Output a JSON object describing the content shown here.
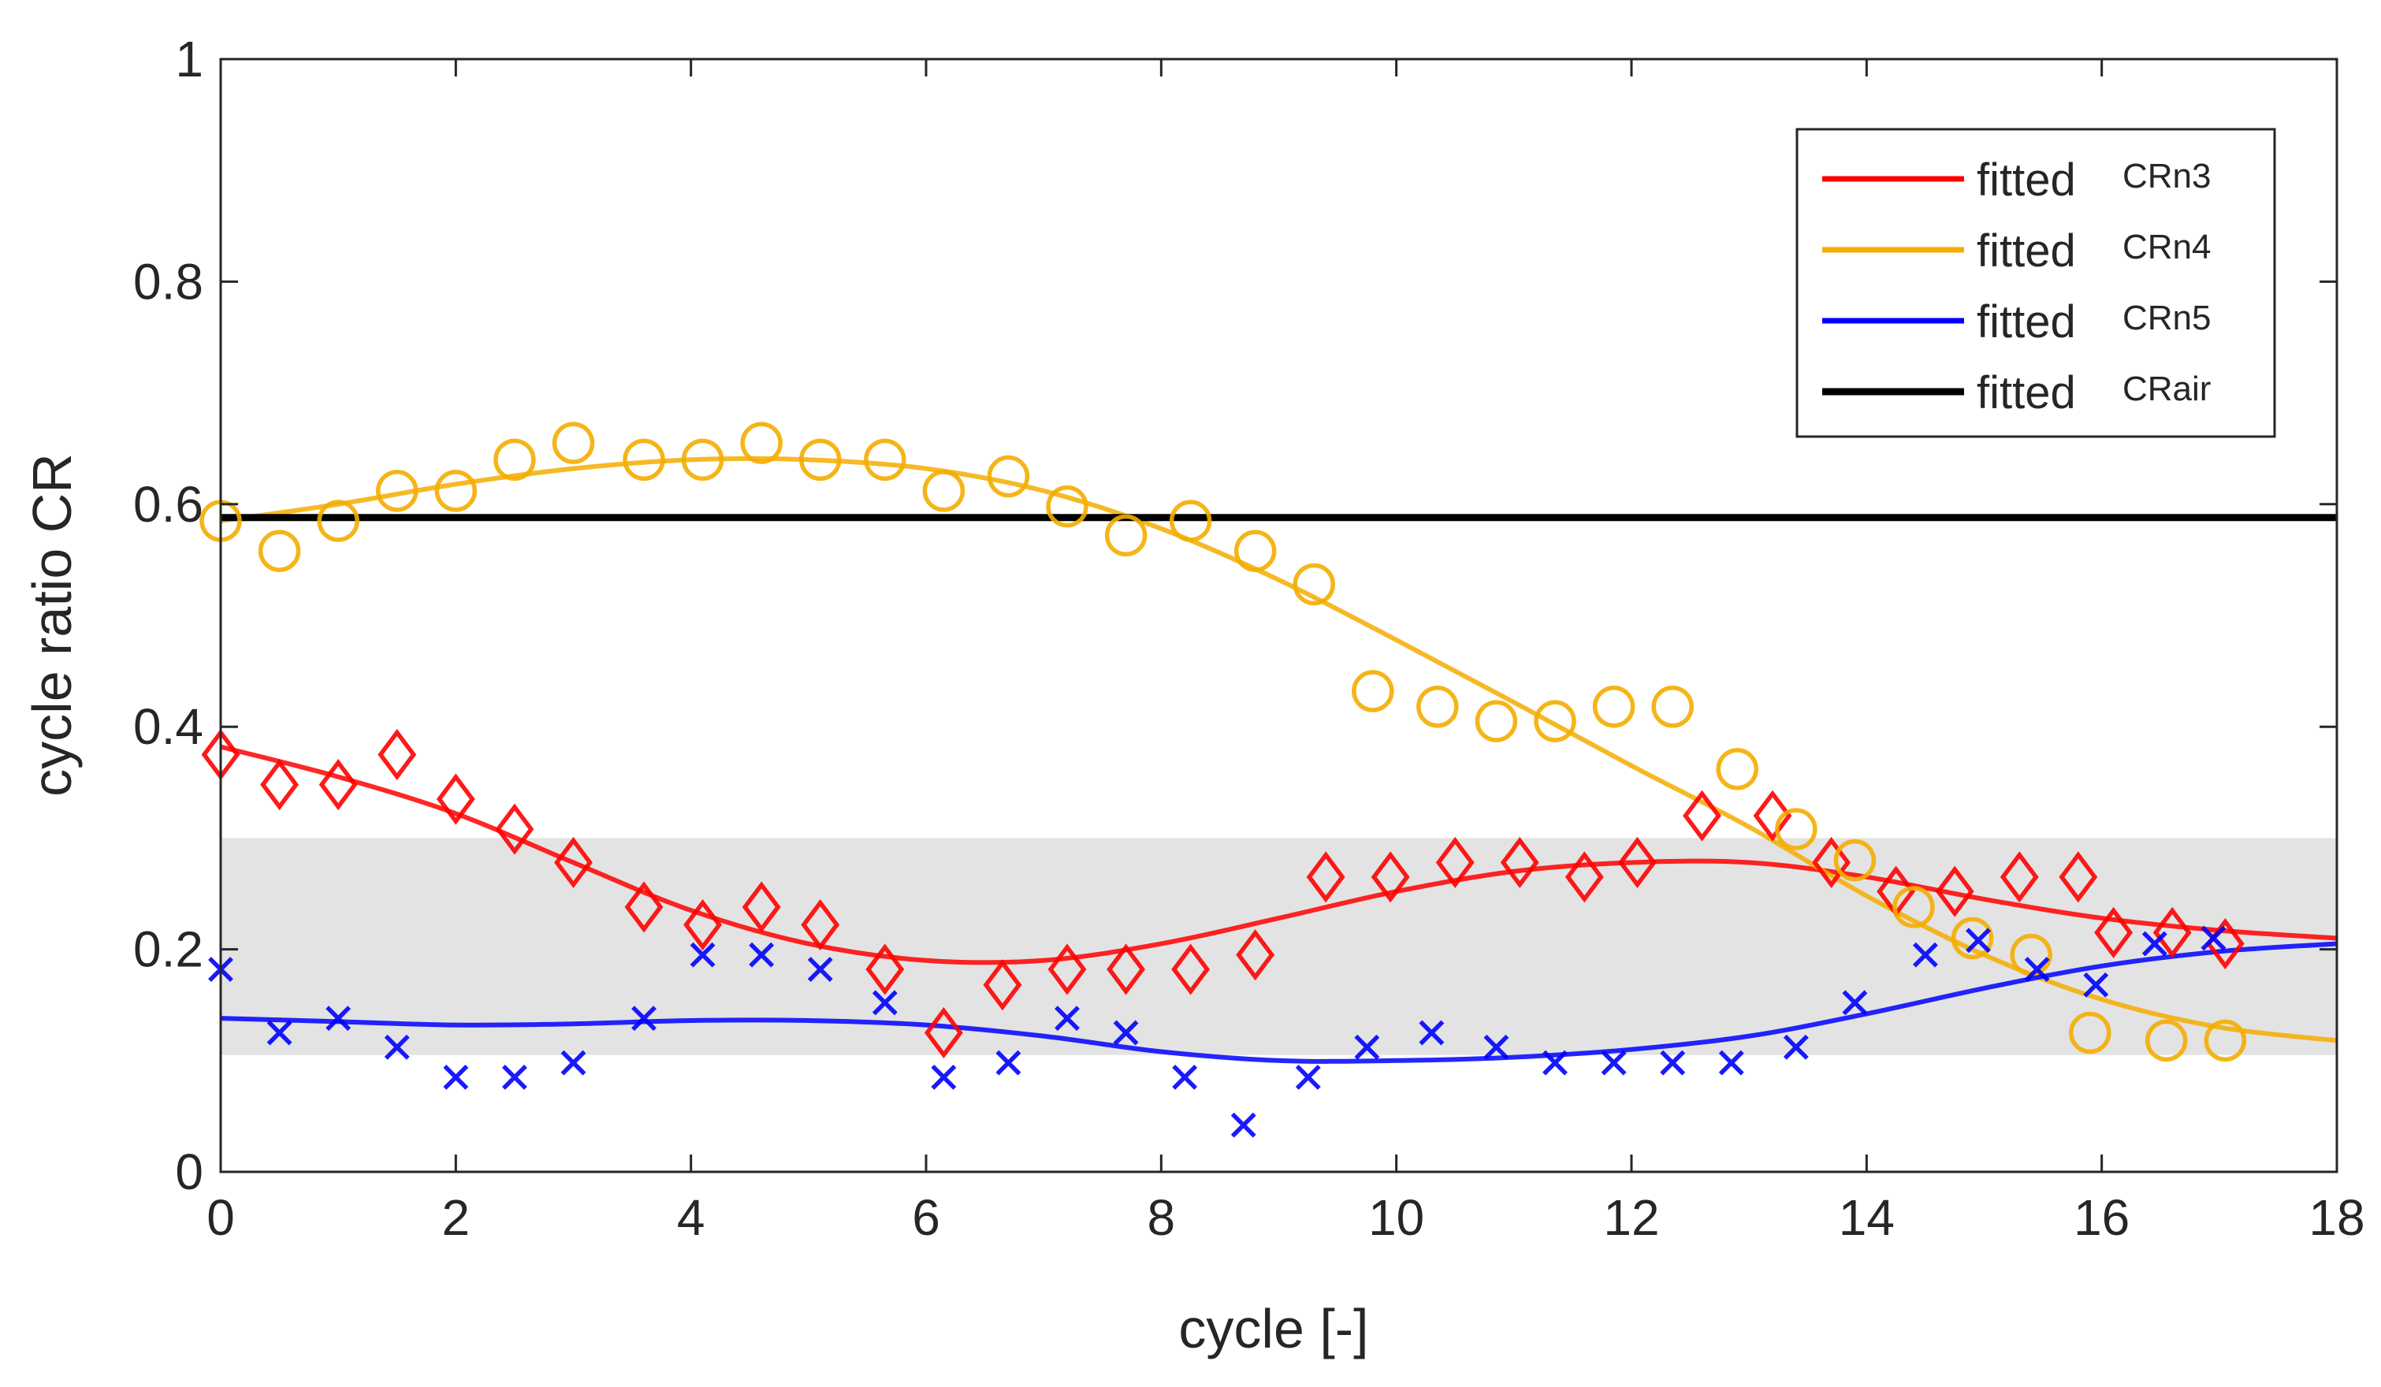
{
  "chart_data": {
    "type": "scatter",
    "xlabel": "cycle [-]",
    "ylabel": "cycle ratio CR",
    "xlim": [
      0,
      18
    ],
    "ylim": [
      0,
      1
    ],
    "xticks": [
      "0",
      "2",
      "4",
      "6",
      "8",
      "10",
      "12",
      "14",
      "16",
      "18"
    ],
    "yticks": [
      "0",
      "0.2",
      "0.4",
      "0.6",
      "0.8",
      "1"
    ],
    "grid": false,
    "legend_position": "top-right",
    "shaded_band": {
      "y_min": 0.105,
      "y_max": 0.3,
      "color": "#e3e3e3"
    },
    "series": [
      {
        "name": "CRn3",
        "color": "#ff0000",
        "marker": "diamond",
        "points": [
          [
            0,
            0.375
          ],
          [
            0.5,
            0.348
          ],
          [
            1,
            0.348
          ],
          [
            1.5,
            0.375
          ],
          [
            2,
            0.335
          ],
          [
            2.5,
            0.308
          ],
          [
            3,
            0.278
          ],
          [
            3.6,
            0.238
          ],
          [
            4.1,
            0.222
          ],
          [
            4.6,
            0.238
          ],
          [
            5.1,
            0.222
          ],
          [
            5.65,
            0.182
          ],
          [
            6.15,
            0.125
          ],
          [
            6.65,
            0.168
          ],
          [
            7.2,
            0.182
          ],
          [
            7.7,
            0.182
          ],
          [
            8.25,
            0.182
          ],
          [
            8.8,
            0.195
          ],
          [
            9.4,
            0.265
          ],
          [
            9.95,
            0.265
          ],
          [
            10.5,
            0.278
          ],
          [
            11.05,
            0.278
          ],
          [
            11.6,
            0.265
          ],
          [
            12.05,
            0.278
          ],
          [
            12.6,
            0.32
          ],
          [
            13.2,
            0.32
          ],
          [
            13.7,
            0.278
          ],
          [
            14.25,
            0.252
          ],
          [
            14.75,
            0.252
          ],
          [
            15.3,
            0.265
          ],
          [
            15.8,
            0.265
          ],
          [
            16.1,
            0.215
          ],
          [
            16.6,
            0.215
          ],
          [
            17.05,
            0.205
          ]
        ],
        "fit": [
          [
            0,
            0.382
          ],
          [
            1,
            0.355
          ],
          [
            2,
            0.322
          ],
          [
            3,
            0.278
          ],
          [
            4,
            0.235
          ],
          [
            5,
            0.205
          ],
          [
            6,
            0.19
          ],
          [
            7,
            0.19
          ],
          [
            8,
            0.205
          ],
          [
            9,
            0.228
          ],
          [
            10,
            0.252
          ],
          [
            11,
            0.27
          ],
          [
            12,
            0.278
          ],
          [
            13,
            0.278
          ],
          [
            14,
            0.265
          ],
          [
            15,
            0.245
          ],
          [
            16,
            0.228
          ],
          [
            17,
            0.217
          ],
          [
            18,
            0.21
          ]
        ]
      },
      {
        "name": "CRn4",
        "color": "#f4ad00",
        "marker": "circle",
        "points": [
          [
            0,
            0.585
          ],
          [
            0.5,
            0.558
          ],
          [
            1,
            0.585
          ],
          [
            1.5,
            0.612
          ],
          [
            2,
            0.612
          ],
          [
            2.5,
            0.64
          ],
          [
            3,
            0.655
          ],
          [
            3.6,
            0.64
          ],
          [
            4.1,
            0.64
          ],
          [
            4.6,
            0.655
          ],
          [
            5.1,
            0.64
          ],
          [
            5.65,
            0.64
          ],
          [
            6.15,
            0.612
          ],
          [
            6.7,
            0.625
          ],
          [
            7.2,
            0.598
          ],
          [
            7.7,
            0.572
          ],
          [
            8.25,
            0.585
          ],
          [
            8.8,
            0.558
          ],
          [
            9.3,
            0.528
          ],
          [
            9.8,
            0.432
          ],
          [
            10.35,
            0.418
          ],
          [
            10.85,
            0.405
          ],
          [
            11.35,
            0.405
          ],
          [
            11.85,
            0.418
          ],
          [
            12.35,
            0.418
          ],
          [
            12.9,
            0.362
          ],
          [
            13.4,
            0.308
          ],
          [
            13.9,
            0.28
          ],
          [
            14.4,
            0.238
          ],
          [
            14.9,
            0.21
          ],
          [
            15.4,
            0.195
          ],
          [
            15.9,
            0.125
          ],
          [
            16.55,
            0.118
          ],
          [
            17.05,
            0.118
          ]
        ],
        "fit": [
          [
            0,
            0.585
          ],
          [
            1,
            0.6
          ],
          [
            2,
            0.618
          ],
          [
            3,
            0.632
          ],
          [
            4,
            0.64
          ],
          [
            5,
            0.64
          ],
          [
            6,
            0.632
          ],
          [
            7,
            0.612
          ],
          [
            8,
            0.578
          ],
          [
            9,
            0.532
          ],
          [
            10,
            0.478
          ],
          [
            11,
            0.422
          ],
          [
            12,
            0.365
          ],
          [
            13,
            0.31
          ],
          [
            14,
            0.248
          ],
          [
            15,
            0.195
          ],
          [
            16,
            0.155
          ],
          [
            17,
            0.13
          ],
          [
            18,
            0.118
          ]
        ]
      },
      {
        "name": "CRn5",
        "color": "#0000ff",
        "marker": "x",
        "points": [
          [
            0,
            0.182
          ],
          [
            0.5,
            0.125
          ],
          [
            1,
            0.138
          ],
          [
            1.5,
            0.112
          ],
          [
            2,
            0.085
          ],
          [
            2.5,
            0.085
          ],
          [
            3,
            0.098
          ],
          [
            3.6,
            0.138
          ],
          [
            4.1,
            0.195
          ],
          [
            4.6,
            0.195
          ],
          [
            5.1,
            0.182
          ],
          [
            5.65,
            0.152
          ],
          [
            6.15,
            0.085
          ],
          [
            6.7,
            0.098
          ],
          [
            7.2,
            0.138
          ],
          [
            7.7,
            0.125
          ],
          [
            8.2,
            0.085
          ],
          [
            8.7,
            0.042
          ],
          [
            9.25,
            0.085
          ],
          [
            9.75,
            0.112
          ],
          [
            10.3,
            0.125
          ],
          [
            10.85,
            0.112
          ],
          [
            11.35,
            0.098
          ],
          [
            11.85,
            0.098
          ],
          [
            12.35,
            0.098
          ],
          [
            12.85,
            0.098
          ],
          [
            13.4,
            0.112
          ],
          [
            13.9,
            0.152
          ],
          [
            14.5,
            0.195
          ],
          [
            14.95,
            0.208
          ],
          [
            15.45,
            0.182
          ],
          [
            15.95,
            0.168
          ],
          [
            16.45,
            0.205
          ],
          [
            16.95,
            0.21
          ]
        ],
        "fit": [
          [
            0,
            0.138
          ],
          [
            1,
            0.135
          ],
          [
            2,
            0.132
          ],
          [
            3,
            0.133
          ],
          [
            4,
            0.136
          ],
          [
            5,
            0.136
          ],
          [
            6,
            0.132
          ],
          [
            7,
            0.122
          ],
          [
            8,
            0.108
          ],
          [
            9,
            0.1
          ],
          [
            10,
            0.1
          ],
          [
            11,
            0.103
          ],
          [
            12,
            0.11
          ],
          [
            13,
            0.122
          ],
          [
            14,
            0.142
          ],
          [
            15,
            0.165
          ],
          [
            16,
            0.185
          ],
          [
            17,
            0.198
          ],
          [
            18,
            0.205
          ]
        ]
      },
      {
        "name": "CRair",
        "color": "#000000",
        "marker": "none",
        "points": [],
        "fit": [
          [
            0,
            0.588
          ],
          [
            18,
            0.588
          ]
        ]
      }
    ],
    "legend": [
      {
        "label": "fitted",
        "sub": "CRn3",
        "color": "#ff0000"
      },
      {
        "label": "fitted",
        "sub": "CRn4",
        "color": "#f4ad00"
      },
      {
        "label": "fitted",
        "sub": "CRn5",
        "color": "#0000ff"
      },
      {
        "label": "fitted",
        "sub": "CRair",
        "color": "#000000"
      }
    ]
  }
}
